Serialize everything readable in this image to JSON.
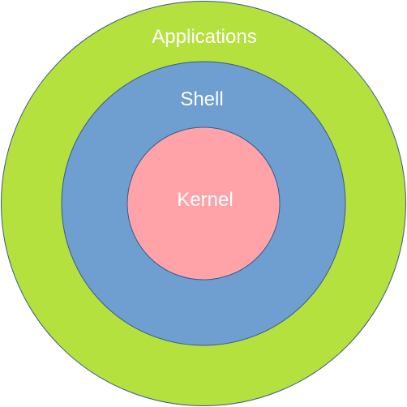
{
  "diagram": {
    "layers": [
      {
        "id": "applications",
        "label": "Applications",
        "fill": "#b5e13e",
        "stroke": "#3a5a8c"
      },
      {
        "id": "shell",
        "label": "Shell",
        "fill": "#6f9ed0",
        "stroke": "#3a5a8c"
      },
      {
        "id": "kernel",
        "label": "Kernel",
        "fill": "#ffa3a8",
        "stroke": "#3a5a8c"
      }
    ]
  }
}
